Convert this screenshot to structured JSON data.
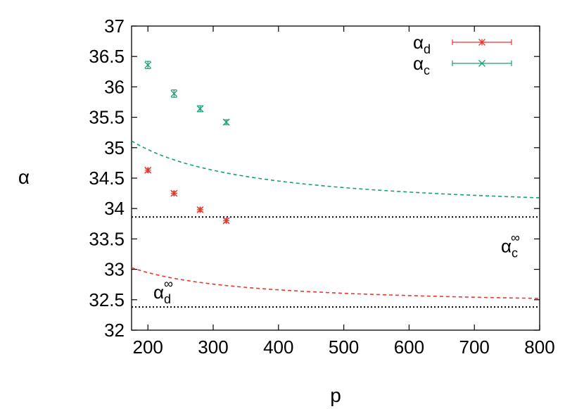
{
  "chart_data": {
    "type": "scatter",
    "xlabel": "p",
    "ylabel": "α",
    "xlim": [
      175,
      800
    ],
    "ylim": [
      32,
      37
    ],
    "xticks": [
      200,
      300,
      400,
      500,
      600,
      700,
      800
    ],
    "yticks": [
      32,
      32.5,
      33,
      33.5,
      34,
      34.5,
      35,
      35.5,
      36,
      36.5,
      37
    ],
    "grid": false,
    "legend_position": "top-right",
    "series": [
      {
        "name": "α",
        "subscript": "d",
        "color": "#e5392e",
        "marker": "star",
        "x": [
          200,
          240,
          280,
          320
        ],
        "y": [
          34.63,
          34.25,
          33.98,
          33.8
        ],
        "yerr": [
          0.03,
          0.03,
          0.03,
          0.03
        ]
      },
      {
        "name": "α",
        "subscript": "c",
        "color": "#1a9e77",
        "marker": "cross",
        "x": [
          200,
          240,
          280,
          320
        ],
        "y": [
          36.36,
          35.89,
          35.64,
          35.42
        ],
        "yerr": [
          0.06,
          0.06,
          0.05,
          0.04
        ]
      }
    ],
    "fits": [
      {
        "series": "d",
        "color": "#e5392e",
        "asymptote": 32.38,
        "amplitude": 113.3,
        "exponent": 1.0
      },
      {
        "series": "c",
        "color": "#1a9e77",
        "asymptote": 33.86,
        "amplitude": 134.1,
        "exponent": 0.905
      }
    ],
    "reference_lines": [
      {
        "y": 33.86,
        "style": "dotted",
        "label": "α",
        "subscript": "c",
        "superscript": "∞"
      },
      {
        "y": 32.38,
        "style": "dotted",
        "label": "α",
        "subscript": "d",
        "superscript": "∞"
      }
    ]
  }
}
